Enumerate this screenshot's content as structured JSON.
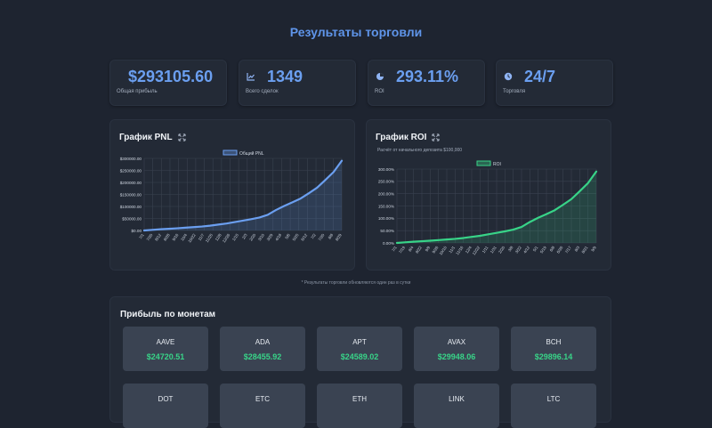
{
  "header": {
    "title": "Результаты торговли"
  },
  "stats": [
    {
      "icon": "dollar-icon",
      "value": "$293105.60",
      "label": "Общая прибыль"
    },
    {
      "icon": "chart-line-icon",
      "value": "1349",
      "label": "Всего сделок"
    },
    {
      "icon": "pie-chart-icon",
      "value": "293.11%",
      "label": "ROI"
    },
    {
      "icon": "clock-icon",
      "value": "24/7",
      "label": "Торговля"
    }
  ],
  "pnl_chart": {
    "title": "График PNL",
    "legend": "Общий PNL",
    "color": "#6b9ff0",
    "y_ticks": [
      "$0.00",
      "$50000.00",
      "$100000.00",
      "$150000.00",
      "$200000.00",
      "$250000.00",
      "$300000.00"
    ],
    "x_ticks": [
      "7/1",
      "7/20",
      "8/12",
      "8/28",
      "9/16",
      "10/4",
      "10/22",
      "11/7",
      "11/25",
      "12/8",
      "12/26",
      "1/15",
      "2/3",
      "2/20",
      "3/10",
      "3/29",
      "4/18",
      "5/6",
      "5/25",
      "6/12",
      "7/2",
      "7/20",
      "8/8",
      "8/29"
    ]
  },
  "roi_chart": {
    "title": "График ROI",
    "subtitle": "Расчёт от начального депозита $100,000",
    "legend": "ROI",
    "color": "#38d488",
    "y_ticks": [
      "0.00%",
      "50.00%",
      "100.00%",
      "150.00%",
      "200.00%",
      "250.00%",
      "300.00%"
    ],
    "x_ticks": [
      "7/1",
      "7/19",
      "8/4",
      "8/22",
      "9/9",
      "9/26",
      "10/10",
      "11/1",
      "11/16",
      "12/4",
      "12/22",
      "1/11",
      "1/31",
      "2/20",
      "3/8",
      "3/22",
      "4/12",
      "5/1",
      "5/19",
      "6/8",
      "6/26",
      "7/17",
      "8/3",
      "8/21",
      "9/9"
    ]
  },
  "chart_data": [
    {
      "type": "line",
      "title": "График PNL",
      "series": [
        {
          "name": "Общий PNL",
          "values": [
            0,
            2500,
            5000,
            7000,
            9000,
            11500,
            14000,
            16500,
            20000,
            24500,
            29000,
            35000,
            41000,
            47000,
            54000,
            65000,
            85000,
            102000,
            117000,
            133000,
            155000,
            178000,
            210000,
            243000,
            290000
          ]
        }
      ],
      "ylim": [
        0,
        300000
      ]
    },
    {
      "type": "line",
      "title": "График ROI",
      "series": [
        {
          "name": "ROI",
          "values": [
            0,
            2.5,
            5,
            7,
            9,
            11.5,
            14,
            16.5,
            20,
            24.5,
            29,
            35,
            41,
            47,
            54,
            65,
            85,
            102,
            117,
            133,
            155,
            178,
            210,
            243,
            290
          ]
        }
      ],
      "ylim": [
        0,
        300
      ]
    }
  ],
  "coins_section": {
    "title": "Прибыль по монетам",
    "coins": [
      {
        "name": "AAVE",
        "value": "$24720.51"
      },
      {
        "name": "ADA",
        "value": "$28455.92"
      },
      {
        "name": "APT",
        "value": "$24589.02"
      },
      {
        "name": "AVAX",
        "value": "$29948.06"
      },
      {
        "name": "BCH",
        "value": "$29896.14"
      },
      {
        "name": "DOT",
        "value": ""
      },
      {
        "name": "ETC",
        "value": ""
      },
      {
        "name": "ETH",
        "value": ""
      },
      {
        "name": "LINK",
        "value": ""
      },
      {
        "name": "LTC",
        "value": ""
      }
    ]
  },
  "footnote": "* Результаты торговли обновляются один раз в сутки"
}
